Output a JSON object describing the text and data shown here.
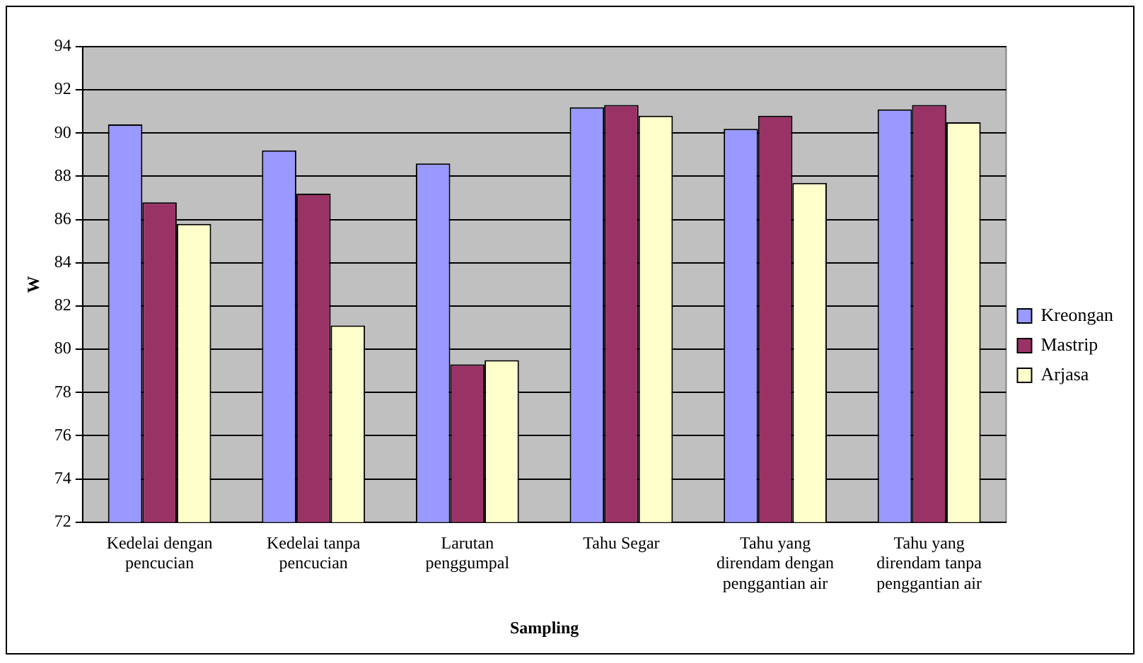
{
  "chart_data": {
    "type": "bar",
    "xlabel": "Sampling",
    "ylabel": "W",
    "categories": [
      "Kedelai dengan pencucian",
      "Kedelai tanpa pencucian",
      "Larutan penggumpal",
      "Tahu Segar",
      "Tahu yang direndam dengan penggantian air",
      "Tahu yang direndam tanpa penggantian air"
    ],
    "series": [
      {
        "name": "Kreongan",
        "color": "#9999ff",
        "values": [
          90.4,
          89.2,
          88.6,
          91.2,
          90.2,
          91.1
        ]
      },
      {
        "name": "Mastrip",
        "color": "#993366",
        "values": [
          86.8,
          87.2,
          79.3,
          91.3,
          90.8,
          91.3
        ]
      },
      {
        "name": "Arjasa",
        "color": "#ffffcc",
        "values": [
          85.8,
          81.1,
          79.5,
          90.8,
          87.7,
          90.5
        ]
      }
    ],
    "ylim": [
      72,
      94
    ],
    "yticks": [
      72,
      74,
      76,
      78,
      80,
      82,
      84,
      86,
      88,
      90,
      92,
      94
    ],
    "grid": "y",
    "legend": "right"
  }
}
